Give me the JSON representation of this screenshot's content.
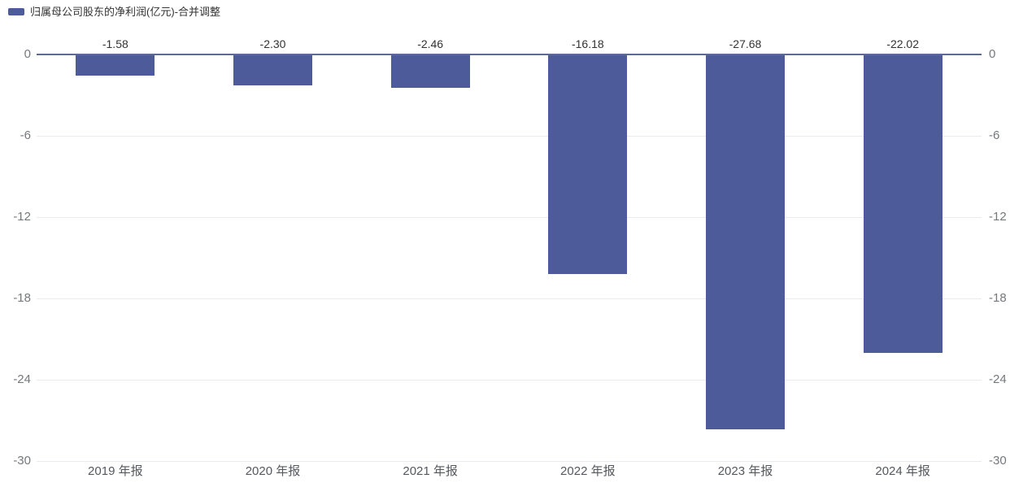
{
  "legend": {
    "label": "归属母公司股东的净利润(亿元)-合并调整"
  },
  "colors": {
    "bar": "#4e5b9b",
    "zero_line": "#5d6b92",
    "gridline": "#e9e9ee",
    "tick_label": "#75787d",
    "data_label": "#333333",
    "x_label": "#55585e",
    "background": "#ffffff"
  },
  "chart_data": {
    "type": "bar",
    "title": "归属母公司股东的净利润(亿元)-合并调整",
    "categories": [
      "2019 年报",
      "2020 年报",
      "2021 年报",
      "2022 年报",
      "2023 年报",
      "2024 年报"
    ],
    "series": [
      {
        "name": "归属母公司股东的净利润(亿元)-合并调整",
        "values": [
          -1.58,
          -2.3,
          -2.46,
          -16.18,
          -27.68,
          -22.02
        ]
      }
    ],
    "data_labels": [
      "-1.58",
      "-2.30",
      "-2.46",
      "-16.18",
      "-27.68",
      "-22.02"
    ],
    "yticks": [
      0,
      -6,
      -12,
      -18,
      -24,
      -30
    ],
    "ytick_labels": [
      "0",
      "-6",
      "-12",
      "-18",
      "-24",
      "-30"
    ],
    "ylim": [
      -30,
      0
    ],
    "grid": true,
    "dual_y_axis": true,
    "legend_position": "top-left",
    "xlabel": "",
    "ylabel": ""
  }
}
